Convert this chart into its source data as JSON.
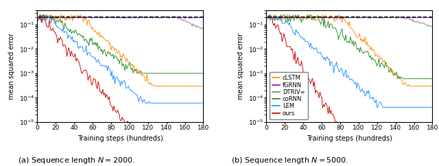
{
  "colors": {
    "cLSTM": "#ff8c00",
    "fGRNN": "#9400d3",
    "DTRIV": "#808080",
    "coRNN": "#228b22",
    "LEM": "#1e90ff",
    "ours": "#cc0000",
    "dashed": "#000000"
  },
  "legend_labels": [
    "cLSTM",
    "fGRNN",
    "DTRIV∞",
    "coRNN",
    "LEM",
    "ours"
  ],
  "xlabel": "Training steps (hundreds)",
  "ylabel": "mean squared error",
  "xlim": [
    0,
    180
  ],
  "n_steps": 180
}
